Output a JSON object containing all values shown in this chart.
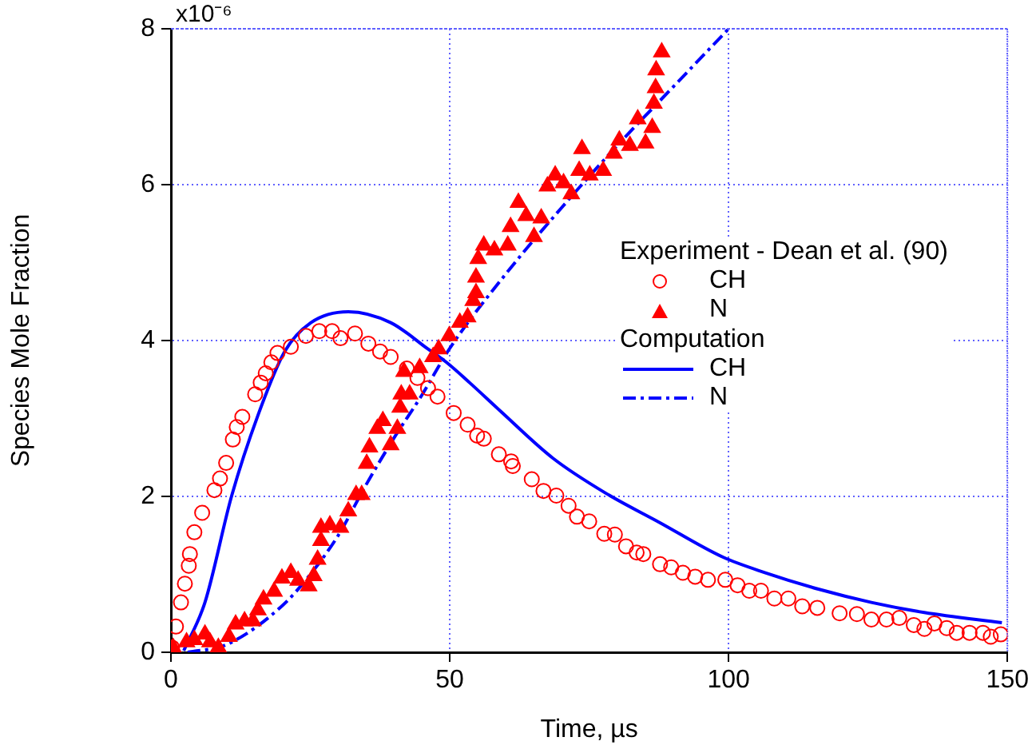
{
  "chart_data": {
    "type": "scatter",
    "xlabel": "Time, µs",
    "ylabel": "Species Mole Fraction",
    "legend_title": "Experiment - Dean et al. (90)",
    "annotations": [
      "Computation",
      "x10⁻⁶"
    ],
    "legend": "right",
    "grid": true,
    "xlim": [
      0,
      150
    ],
    "xticks": [
      0,
      50,
      100,
      150
    ],
    "ylim": [
      0,
      8
    ],
    "yticks": [
      0,
      2,
      4,
      6,
      8
    ],
    "series": [
      {
        "name": "CH",
        "type": "scatter",
        "marker": "circle",
        "color": "#ff0000",
        "x": [
          0.2,
          0.9,
          1.8,
          2.5,
          3.2,
          3.4,
          4.2,
          5.6,
          7.8,
          8.8,
          9.9,
          11.1,
          11.8,
          12.8,
          15.1,
          16.1,
          17.0,
          18.0,
          19.1,
          21.5,
          24.2,
          26.6,
          28.9,
          30.4,
          33.0,
          35.4,
          37.5,
          39.4,
          42.3,
          44.2,
          46.1,
          47.8,
          50.7,
          53.2,
          54.9,
          56.1,
          58.8,
          61.0,
          61.3,
          64.7,
          66.8,
          69.1,
          71.3,
          72.8,
          75.0,
          77.7,
          79.6,
          81.6,
          83.5,
          84.7,
          87.7,
          89.7,
          91.8,
          94.0,
          96.3,
          99.4,
          101.6,
          103.7,
          105.8,
          108.2,
          110.7,
          113.2,
          115.9,
          119.9,
          123.0,
          125.6,
          128.3,
          130.6,
          133.2,
          135.1,
          136.9,
          139.1,
          140.9,
          143.2,
          145.6,
          147.0,
          148.8
        ],
        "values": [
          0.06,
          0.33,
          0.64,
          0.88,
          1.11,
          1.26,
          1.54,
          1.79,
          2.08,
          2.23,
          2.43,
          2.73,
          2.89,
          3.02,
          3.31,
          3.46,
          3.58,
          3.72,
          3.84,
          3.92,
          4.06,
          4.12,
          4.12,
          4.03,
          4.09,
          3.96,
          3.86,
          3.79,
          3.64,
          3.52,
          3.39,
          3.28,
          3.07,
          2.92,
          2.78,
          2.74,
          2.54,
          2.45,
          2.39,
          2.22,
          2.07,
          2.01,
          1.88,
          1.74,
          1.68,
          1.52,
          1.51,
          1.36,
          1.28,
          1.26,
          1.13,
          1.09,
          1.02,
          0.97,
          0.93,
          0.93,
          0.86,
          0.79,
          0.79,
          0.69,
          0.69,
          0.59,
          0.57,
          0.5,
          0.49,
          0.42,
          0.42,
          0.44,
          0.35,
          0.3,
          0.37,
          0.31,
          0.25,
          0.25,
          0.25,
          0.2,
          0.23
        ]
      },
      {
        "name": "N",
        "type": "scatter",
        "marker": "triangle",
        "color": "#ff0000",
        "x": [
          0.4,
          2.8,
          4.2,
          6.1,
          7.0,
          8.5,
          10.4,
          11.6,
          13.2,
          14.7,
          15.6,
          16.6,
          18.5,
          19.9,
          21.5,
          22.8,
          24.7,
          25.6,
          26.3,
          26.9,
          26.9,
          28.5,
          30.4,
          31.8,
          33.2,
          34.2,
          35.1,
          35.6,
          37.0,
          38.0,
          39.4,
          40.6,
          41.1,
          41.3,
          41.8,
          42.8,
          44.6,
          47.0,
          48.0,
          49.9,
          51.8,
          53.2,
          54.2,
          54.7,
          54.7,
          55.1,
          56.1,
          58.0,
          60.4,
          60.9,
          62.3,
          63.7,
          65.1,
          66.4,
          67.5,
          68.9,
          70.4,
          71.8,
          73.2,
          73.7,
          75.1,
          77.5,
          79.4,
          80.4,
          82.3,
          83.7,
          85.1,
          86.3,
          86.6,
          86.9,
          87.0,
          88.0
        ],
        "values": [
          0.06,
          0.13,
          0.16,
          0.23,
          0.13,
          0.06,
          0.2,
          0.36,
          0.4,
          0.4,
          0.54,
          0.68,
          0.78,
          0.95,
          1.02,
          0.92,
          0.85,
          0.98,
          1.19,
          1.43,
          1.6,
          1.63,
          1.6,
          1.81,
          2.02,
          2.02,
          2.42,
          2.63,
          2.87,
          2.97,
          2.66,
          2.87,
          3.14,
          3.31,
          3.6,
          3.31,
          3.65,
          3.79,
          3.89,
          4.06,
          4.23,
          4.3,
          4.51,
          4.61,
          4.81,
          5.05,
          5.22,
          5.16,
          5.22,
          5.46,
          5.77,
          5.6,
          5.33,
          5.57,
          5.98,
          6.12,
          6.02,
          5.88,
          6.18,
          6.46,
          6.12,
          6.18,
          6.4,
          6.57,
          6.5,
          6.84,
          6.53,
          6.73,
          7.04,
          7.24,
          7.47,
          7.7
        ]
      },
      {
        "name": "CH",
        "type": "line",
        "marker": "none",
        "line_style": "solid",
        "color": "#0000ff",
        "x": [
          2.3,
          6.1,
          10.9,
          15.6,
          20.4,
          25.1,
          31.8,
          39.4,
          46.1,
          49.4,
          53.7,
          59.0,
          68.5,
          78.0,
          87.5,
          99.0,
          106.6,
          116.1,
          125.6,
          135.1,
          149.0
        ],
        "values": [
          0.02,
          0.64,
          2.01,
          3.04,
          3.86,
          4.23,
          4.37,
          4.23,
          3.89,
          3.72,
          3.45,
          3.1,
          2.49,
          2.04,
          1.67,
          1.22,
          1.02,
          0.81,
          0.64,
          0.51,
          0.38
        ]
      },
      {
        "name": "N",
        "type": "line",
        "marker": "none",
        "line_style": "dashed",
        "color": "#0000ff",
        "x": [
          3,
          10,
          20,
          25,
          30,
          35,
          40,
          45,
          50,
          60,
          70,
          80,
          90,
          100
        ],
        "values": [
          0,
          0.1,
          0.6,
          1.0,
          1.5,
          2.15,
          2.75,
          3.3,
          3.9,
          4.85,
          5.7,
          6.5,
          7.25,
          8.0
        ]
      }
    ]
  }
}
